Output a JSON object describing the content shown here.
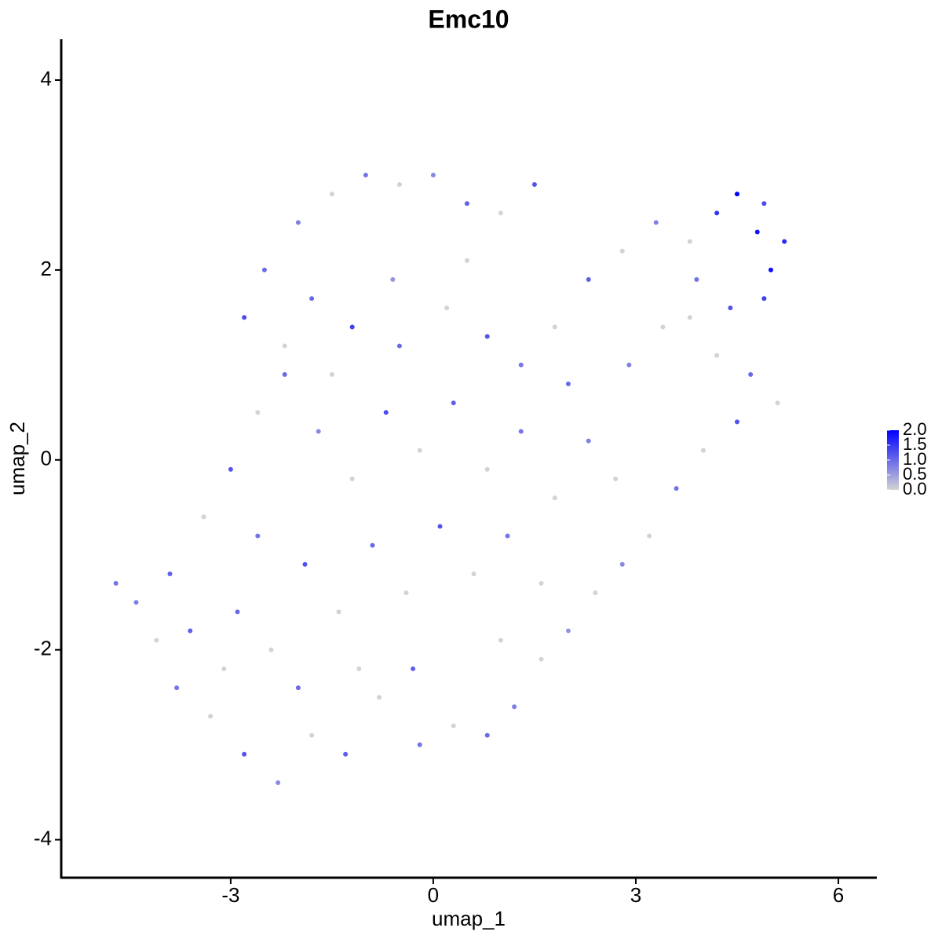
{
  "chart_data": {
    "type": "scatter",
    "title": "Emc10",
    "x_label": "umap_1",
    "y_label": "umap_2",
    "xlim": [
      -5.51,
      6.57
    ],
    "xticks": [
      -3,
      0,
      3,
      6
    ],
    "ylim": [
      -4.4,
      4.43
    ],
    "yticks": [
      -4,
      -2,
      0,
      2,
      4
    ],
    "color_low": "#d3d3d3",
    "color_high": "#0000ff",
    "clim": [
      0,
      2.0
    ],
    "cticks": [
      {
        "value": 0,
        "label": "0.0"
      },
      {
        "value": 0.5,
        "label": "0.5"
      },
      {
        "value": 1.0,
        "label": "1.0"
      },
      {
        "value": 1.5,
        "label": "1.5"
      },
      {
        "value": 2.0,
        "label": "2.0"
      }
    ],
    "x": [
      -2.5,
      -2.0,
      -1.5,
      -1.0,
      -0.5,
      0,
      0.5,
      1.0,
      1.5,
      -2.8,
      -2.2,
      -1.8,
      -1.2,
      -0.6,
      0.2,
      0.8,
      1.3,
      1.8,
      2.3,
      2.8,
      3.3,
      3.8,
      4.2,
      4.5,
      4.8,
      5.0,
      5.2,
      4.9,
      4.4,
      3.9,
      3.4,
      2.9,
      4.2,
      4.7,
      5.1,
      4.5,
      4.0,
      3.6,
      3.2,
      2.8,
      2.4,
      2.0,
      1.6,
      1.2,
      0.8,
      0.3,
      -0.2,
      -0.8,
      -1.3,
      -1.8,
      -2.3,
      -2.8,
      -3.3,
      -3.8,
      -4.1,
      -4.4,
      -4.7,
      -3.9,
      -3.4,
      -3.0,
      -2.6,
      -2.2,
      -1.7,
      -1.2,
      -0.7,
      -0.2,
      0.3,
      0.8,
      1.3,
      1.8,
      2.3,
      2.7,
      -2.9,
      -2.4,
      -1.9,
      -1.4,
      -0.9,
      -0.4,
      0.1,
      0.6,
      1.1,
      1.6,
      -0.3,
      -1.1,
      -2.0,
      -3.1,
      -3.6,
      1.0,
      -2.6,
      -1.5,
      -0.5,
      0.5,
      2.0,
      3.8,
      4.9
    ],
    "y": [
      2.0,
      2.5,
      2.8,
      3.0,
      2.9,
      3.0,
      2.7,
      2.6,
      2.9,
      1.5,
      1.2,
      1.7,
      1.4,
      1.9,
      1.6,
      1.3,
      1.0,
      1.4,
      1.9,
      2.2,
      2.5,
      2.3,
      2.6,
      2.8,
      2.4,
      2.0,
      2.3,
      1.7,
      1.6,
      1.9,
      1.4,
      1.0,
      1.1,
      0.9,
      0.6,
      0.4,
      0.1,
      -0.3,
      -0.8,
      -1.1,
      -1.4,
      -1.8,
      -2.1,
      -2.6,
      -2.9,
      -2.8,
      -3.0,
      -2.5,
      -3.1,
      -2.9,
      -3.4,
      -3.1,
      -2.7,
      -2.4,
      -1.9,
      -1.5,
      -1.3,
      -1.2,
      -0.6,
      -0.1,
      0.5,
      0.9,
      0.3,
      -0.2,
      0.5,
      0.1,
      0.6,
      -0.1,
      0.3,
      -0.4,
      0.2,
      -0.2,
      -1.6,
      -2.0,
      -1.1,
      -1.6,
      -0.9,
      -1.4,
      -0.7,
      -1.2,
      -0.8,
      -1.3,
      -2.2,
      -2.2,
      -2.4,
      -2.2,
      -1.8,
      -1.9,
      -0.8,
      0.9,
      1.2,
      2.1,
      0.8,
      1.5,
      2.7
    ],
    "values": [
      1.0,
      0.8,
      0,
      0.9,
      0,
      0.7,
      1.1,
      0,
      1.2,
      1.3,
      0,
      1.0,
      1.4,
      0.6,
      0,
      1.2,
      0.9,
      0,
      1.1,
      0,
      0.8,
      0,
      1.5,
      2.0,
      1.8,
      1.9,
      1.6,
      1.4,
      1.2,
      0.9,
      0,
      0.8,
      0,
      1.0,
      0,
      1.2,
      0,
      0.9,
      0,
      0.7,
      0,
      0.6,
      0,
      0.8,
      1.0,
      0,
      0.9,
      0,
      1.1,
      0,
      0.7,
      1.2,
      0,
      0.9,
      0,
      0.8,
      0.9,
      1.1,
      0,
      1.2,
      0,
      1.0,
      0.7,
      0,
      1.3,
      0,
      1.1,
      0,
      0.9,
      0,
      0.8,
      0,
      1.0,
      0,
      1.2,
      0,
      1.0,
      0,
      1.2,
      0,
      0.9,
      0,
      1.1,
      0,
      1.0,
      0,
      1.1,
      0,
      0.9,
      0,
      1.0,
      0,
      1.0,
      0,
      1.3
    ]
  }
}
